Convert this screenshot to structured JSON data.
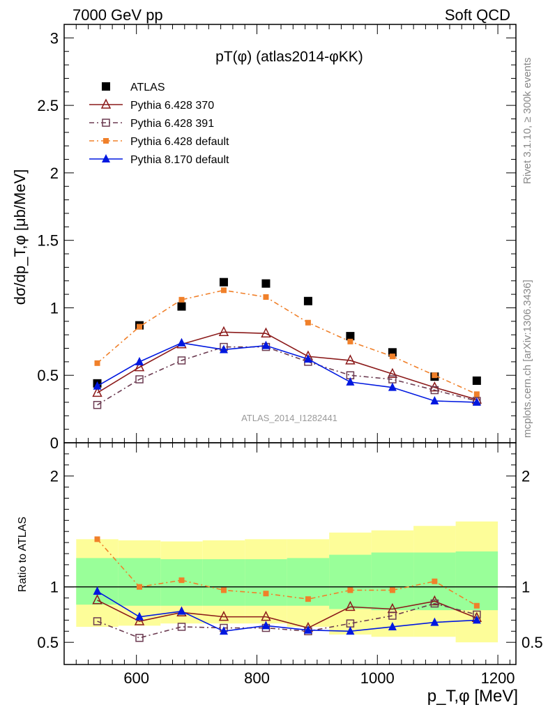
{
  "header": {
    "left": "7000 GeV pp",
    "right": "Soft QCD"
  },
  "side_labels": {
    "rivet": "Rivet 3.1.10, ≥ 300k events",
    "mcplots": "mcplots.cern.ch [arXiv:1306.3436]"
  },
  "chart_data": [
    {
      "type": "scatter",
      "title": "pT(φ) (atlas2014-φKK)",
      "ylabel": "dσ/dp_T,φ [μb/MeV]",
      "watermark": "ATLAS_2014_I1282441",
      "xlim": [
        480,
        1230
      ],
      "ylim": [
        0,
        3.1
      ],
      "y_ticks": [
        0,
        0.5,
        1,
        1.5,
        2,
        2.5,
        3
      ],
      "y_tick_labels": [
        "0",
        "0.5",
        "1",
        "1.5",
        "2",
        "2.5",
        "3"
      ],
      "x": [
        535,
        605,
        675,
        745,
        815,
        885,
        955,
        1025,
        1095,
        1165
      ],
      "legend_position": "top-left",
      "series": [
        {
          "name": "ATLAS",
          "color": "#000000",
          "marker": "square-filled",
          "line": "none",
          "values": [
            0.44,
            0.87,
            1.01,
            1.19,
            1.18,
            1.05,
            0.79,
            0.67,
            0.49,
            0.46
          ]
        },
        {
          "name": "Pythia 6.428 370",
          "color": "#8b1a1a",
          "marker": "triangle-open",
          "line": "solid",
          "values": [
            0.37,
            0.56,
            0.73,
            0.82,
            0.81,
            0.64,
            0.61,
            0.51,
            0.41,
            0.32
          ]
        },
        {
          "name": "Pythia 6.428 391",
          "color": "#6b3a50",
          "marker": "square-open",
          "line": "dashdot",
          "values": [
            0.28,
            0.47,
            0.61,
            0.71,
            0.71,
            0.6,
            0.5,
            0.47,
            0.39,
            0.31
          ]
        },
        {
          "name": "Pythia 6.428 default",
          "color": "#f0802a",
          "marker": "square-small",
          "line": "dashdot",
          "values": [
            0.59,
            0.86,
            1.06,
            1.13,
            1.08,
            0.89,
            0.75,
            0.64,
            0.5,
            0.36
          ]
        },
        {
          "name": "Pythia 8.170 default",
          "color": "#0018e0",
          "marker": "triangle-filled",
          "line": "solid",
          "values": [
            0.42,
            0.6,
            0.74,
            0.69,
            0.72,
            0.62,
            0.45,
            0.41,
            0.31,
            0.3
          ]
        }
      ]
    },
    {
      "type": "scatter",
      "ylabel": "Ratio to ATLAS",
      "xlabel": "p_T,φ [MeV]",
      "xlim": [
        480,
        1230
      ],
      "ylim": [
        0.3,
        2.3
      ],
      "y_ticks": [
        0.5,
        1,
        2
      ],
      "y_tick_labels": [
        "0.5",
        "1",
        "2"
      ],
      "x_ticks": [
        600,
        800,
        1000,
        1200
      ],
      "x_tick_labels": [
        "600",
        "800",
        "1000",
        "1200"
      ],
      "x": [
        535,
        605,
        675,
        745,
        815,
        885,
        955,
        1025,
        1095,
        1165
      ],
      "reference_line": 1,
      "bands": {
        "bin_edges": [
          500,
          570,
          640,
          710,
          780,
          850,
          920,
          990,
          1060,
          1130,
          1200
        ],
        "yellow_low": [
          0.64,
          0.65,
          0.67,
          0.67,
          0.67,
          0.64,
          0.57,
          0.55,
          0.55,
          0.5
        ],
        "yellow_high": [
          1.43,
          1.42,
          1.41,
          1.42,
          1.43,
          1.43,
          1.49,
          1.51,
          1.55,
          1.59
        ],
        "green_low": [
          0.84,
          0.83,
          0.83,
          0.83,
          0.83,
          0.83,
          0.8,
          0.79,
          0.79,
          0.79
        ],
        "green_high": [
          1.26,
          1.26,
          1.25,
          1.25,
          1.25,
          1.26,
          1.29,
          1.31,
          1.31,
          1.32
        ]
      },
      "series": [
        {
          "name": "Pythia 6.428 370",
          "color": "#8b1a1a",
          "values": [
            0.88,
            0.69,
            0.77,
            0.73,
            0.73,
            0.63,
            0.82,
            0.8,
            0.87,
            0.72
          ]
        },
        {
          "name": "Pythia 6.428 391",
          "color": "#6b3a50",
          "values": [
            0.69,
            0.54,
            0.64,
            0.63,
            0.63,
            0.6,
            0.67,
            0.74,
            0.85,
            0.75
          ]
        },
        {
          "name": "Pythia 6.428 default",
          "color": "#f0802a",
          "values": [
            1.43,
            1.0,
            1.06,
            0.97,
            0.94,
            0.89,
            0.97,
            0.97,
            1.05,
            0.83
          ]
        },
        {
          "name": "Pythia 8.170 default",
          "color": "#0018e0",
          "values": [
            0.96,
            0.73,
            0.78,
            0.6,
            0.65,
            0.61,
            0.6,
            0.64,
            0.68,
            0.7
          ]
        }
      ]
    }
  ]
}
